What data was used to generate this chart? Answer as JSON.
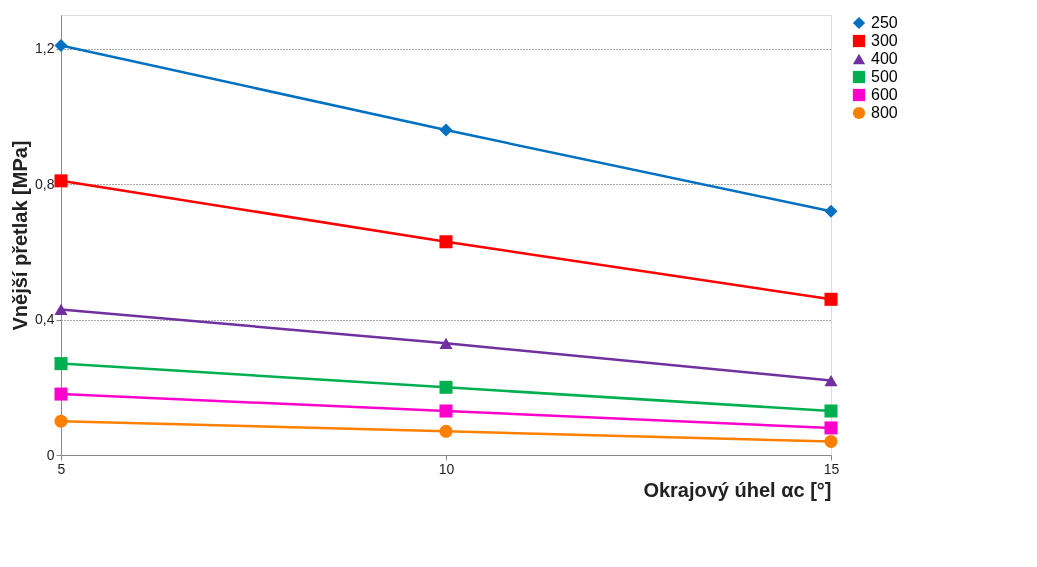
{
  "chart_data": {
    "type": "line",
    "xlabel": "Okrajový úhel αc [°]",
    "ylabel": "Vnější přetlak [MPa]",
    "x": [
      5,
      10,
      15
    ],
    "series": [
      {
        "name": "250",
        "color": "#0070c0",
        "marker": "diamond",
        "values": [
          1.21,
          0.96,
          0.72
        ]
      },
      {
        "name": "300",
        "color": "#ff0000",
        "marker": "square",
        "values": [
          0.81,
          0.63,
          0.46
        ]
      },
      {
        "name": "400",
        "color": "#7030a0",
        "marker": "triangle",
        "values": [
          0.43,
          0.33,
          0.22
        ]
      },
      {
        "name": "500",
        "color": "#00b050",
        "marker": "square",
        "values": [
          0.27,
          0.2,
          0.13
        ]
      },
      {
        "name": "600",
        "color": "#ff00cc",
        "marker": "square",
        "values": [
          0.18,
          0.13,
          0.08
        ]
      },
      {
        "name": "800",
        "color": "#ff8000",
        "marker": "circle",
        "values": [
          0.1,
          0.07,
          0.04
        ]
      }
    ],
    "xlim": [
      5,
      15
    ],
    "xticks": [
      5,
      10,
      15
    ],
    "ylim": [
      0,
      1.3
    ],
    "yticks": [
      0,
      {
        "value": 0.4,
        "label": "0,4"
      },
      {
        "value": 0.8,
        "label": "0,8"
      },
      {
        "value": 1.2,
        "label": "1,2"
      }
    ],
    "grid": "y",
    "legend": "right",
    "line_style": "solid"
  }
}
